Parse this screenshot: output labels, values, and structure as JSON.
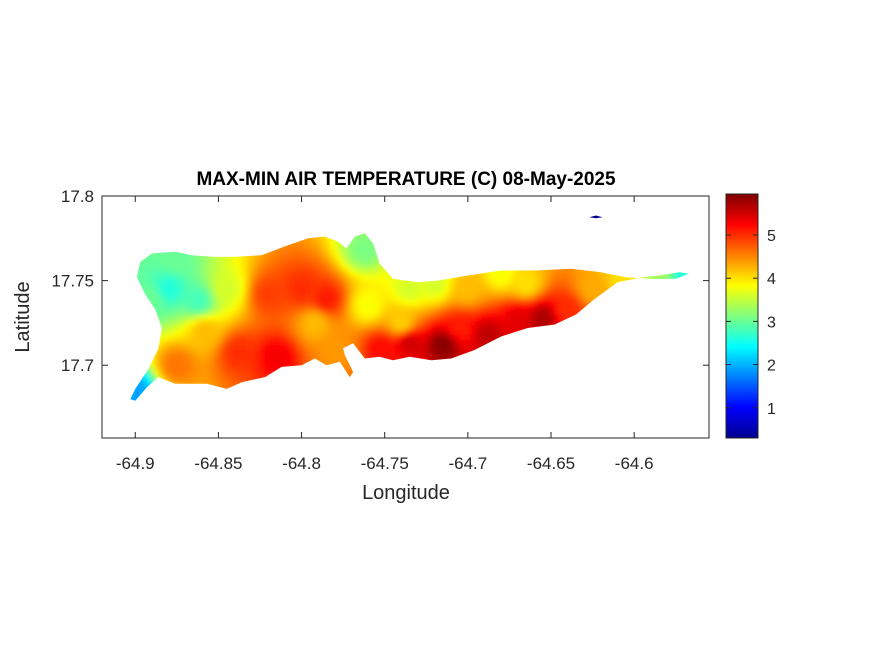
{
  "chart_data": {
    "type": "heatmap",
    "title": "MAX-MIN AIR TEMPERATURE (C) 08-May-2025",
    "xlabel": "Longitude",
    "ylabel": "Latitude",
    "xlim": [
      -64.92,
      -64.555
    ],
    "ylim": [
      17.657,
      17.8
    ],
    "x_ticks": [
      -64.9,
      -64.85,
      -64.8,
      -64.75,
      -64.7,
      -64.65,
      -64.6
    ],
    "x_tick_labels": [
      "-64.9",
      "-64.85",
      "-64.8",
      "-64.75",
      "-64.7",
      "-64.65",
      "-64.6"
    ],
    "y_ticks": [
      17.7,
      17.75,
      17.8
    ],
    "y_tick_labels": [
      "17.7",
      "17.75",
      "17.8"
    ],
    "grid": false,
    "colormap": "jet",
    "colorbar": {
      "range": [
        0.3,
        5.95
      ],
      "ticks": [
        1,
        2,
        3,
        4,
        5
      ],
      "tick_labels": [
        "1",
        "2",
        "3",
        "4",
        "5"
      ]
    },
    "island_outline": [
      [
        -64.9,
        17.679
      ],
      [
        -64.893,
        17.687
      ],
      [
        -64.886,
        17.693
      ],
      [
        -64.876,
        17.689
      ],
      [
        -64.857,
        17.689
      ],
      [
        -64.845,
        17.686
      ],
      [
        -64.836,
        17.69
      ],
      [
        -64.822,
        17.693
      ],
      [
        -64.812,
        17.699
      ],
      [
        -64.8,
        17.7
      ],
      [
        -64.792,
        17.704
      ],
      [
        -64.785,
        17.7
      ],
      [
        -64.777,
        17.702
      ],
      [
        -64.771,
        17.693
      ],
      [
        -64.769,
        17.696
      ],
      [
        -64.774,
        17.706
      ],
      [
        -64.775,
        17.71
      ],
      [
        -64.769,
        17.713
      ],
      [
        -64.762,
        17.704
      ],
      [
        -64.753,
        17.705
      ],
      [
        -64.745,
        17.703
      ],
      [
        -64.735,
        17.705
      ],
      [
        -64.722,
        17.703
      ],
      [
        -64.71,
        17.704
      ],
      [
        -64.696,
        17.709
      ],
      [
        -64.68,
        17.717
      ],
      [
        -64.664,
        17.722
      ],
      [
        -64.648,
        17.724
      ],
      [
        -64.635,
        17.73
      ],
      [
        -64.624,
        17.739
      ],
      [
        -64.61,
        17.749
      ],
      [
        -64.595,
        17.752
      ],
      [
        -64.585,
        17.753
      ],
      [
        -64.573,
        17.755
      ],
      [
        -64.567,
        17.754
      ],
      [
        -64.575,
        17.751
      ],
      [
        -64.59,
        17.751
      ],
      [
        -64.605,
        17.752
      ],
      [
        -64.62,
        17.755
      ],
      [
        -64.638,
        17.757
      ],
      [
        -64.66,
        17.756
      ],
      [
        -64.68,
        17.756
      ],
      [
        -64.7,
        17.753
      ],
      [
        -64.718,
        17.75
      ],
      [
        -64.73,
        17.749
      ],
      [
        -64.745,
        17.751
      ],
      [
        -64.753,
        17.76
      ],
      [
        -64.757,
        17.772
      ],
      [
        -64.762,
        17.778
      ],
      [
        -64.768,
        17.776
      ],
      [
        -64.773,
        17.769
      ],
      [
        -64.778,
        17.773
      ],
      [
        -64.786,
        17.776
      ],
      [
        -64.796,
        17.775
      ],
      [
        -64.808,
        17.771
      ],
      [
        -64.824,
        17.765
      ],
      [
        -64.84,
        17.764
      ],
      [
        -64.853,
        17.764
      ],
      [
        -64.866,
        17.765
      ],
      [
        -64.876,
        17.767
      ],
      [
        -64.89,
        17.766
      ],
      [
        -64.897,
        17.761
      ],
      [
        -64.899,
        17.752
      ],
      [
        -64.894,
        17.742
      ],
      [
        -64.888,
        17.733
      ],
      [
        -64.884,
        17.722
      ],
      [
        -64.886,
        17.71
      ],
      [
        -64.892,
        17.698
      ],
      [
        -64.9,
        17.686
      ],
      [
        -64.903,
        17.68
      ]
    ],
    "islet_outline": [
      [
        -64.627,
        17.7875
      ],
      [
        -64.623,
        17.7885
      ],
      [
        -64.619,
        17.7875
      ],
      [
        -64.623,
        17.7868
      ]
    ],
    "islet_value": 0.4,
    "field_points": [
      {
        "lon": -64.9,
        "lat": 17.684,
        "value": 1.9
      },
      {
        "lon": -64.88,
        "lat": 17.745,
        "value": 2.6
      },
      {
        "lon": -64.862,
        "lat": 17.738,
        "value": 2.8
      },
      {
        "lon": -64.876,
        "lat": 17.762,
        "value": 3.0
      },
      {
        "lon": -64.89,
        "lat": 17.74,
        "value": 3.0
      },
      {
        "lon": -64.845,
        "lat": 17.745,
        "value": 3.6
      },
      {
        "lon": -64.82,
        "lat": 17.742,
        "value": 4.9
      },
      {
        "lon": -64.8,
        "lat": 17.745,
        "value": 5.0
      },
      {
        "lon": -64.785,
        "lat": 17.739,
        "value": 5.1
      },
      {
        "lon": -64.792,
        "lat": 17.725,
        "value": 4.2
      },
      {
        "lon": -64.76,
        "lat": 17.735,
        "value": 3.8
      },
      {
        "lon": -64.762,
        "lat": 17.768,
        "value": 3.1
      },
      {
        "lon": -64.735,
        "lat": 17.745,
        "value": 3.6
      },
      {
        "lon": -64.74,
        "lat": 17.725,
        "value": 4.1
      },
      {
        "lon": -64.838,
        "lat": 17.708,
        "value": 5.0
      },
      {
        "lon": -64.815,
        "lat": 17.705,
        "value": 5.3
      },
      {
        "lon": -64.875,
        "lat": 17.7,
        "value": 4.6
      },
      {
        "lon": -64.858,
        "lat": 17.72,
        "value": 4.2
      },
      {
        "lon": -64.778,
        "lat": 17.708,
        "value": 4.4
      },
      {
        "lon": -64.752,
        "lat": 17.71,
        "value": 5.2
      },
      {
        "lon": -64.735,
        "lat": 17.713,
        "value": 5.5
      },
      {
        "lon": -64.715,
        "lat": 17.712,
        "value": 5.9
      },
      {
        "lon": -64.705,
        "lat": 17.722,
        "value": 5.1
      },
      {
        "lon": -64.688,
        "lat": 17.718,
        "value": 5.6
      },
      {
        "lon": -64.67,
        "lat": 17.727,
        "value": 5.4
      },
      {
        "lon": -64.655,
        "lat": 17.728,
        "value": 5.7
      },
      {
        "lon": -64.64,
        "lat": 17.733,
        "value": 5.0
      },
      {
        "lon": -64.7,
        "lat": 17.745,
        "value": 4.2
      },
      {
        "lon": -64.665,
        "lat": 17.748,
        "value": 4.0
      },
      {
        "lon": -64.625,
        "lat": 17.745,
        "value": 4.3
      },
      {
        "lon": -64.605,
        "lat": 17.752,
        "value": 4.0
      },
      {
        "lon": -64.585,
        "lat": 17.753,
        "value": 3.3
      },
      {
        "lon": -64.57,
        "lat": 17.754,
        "value": 2.6
      },
      {
        "lon": -64.72,
        "lat": 17.748,
        "value": 3.6
      },
      {
        "lon": -64.68,
        "lat": 17.754,
        "value": 3.8
      }
    ]
  }
}
